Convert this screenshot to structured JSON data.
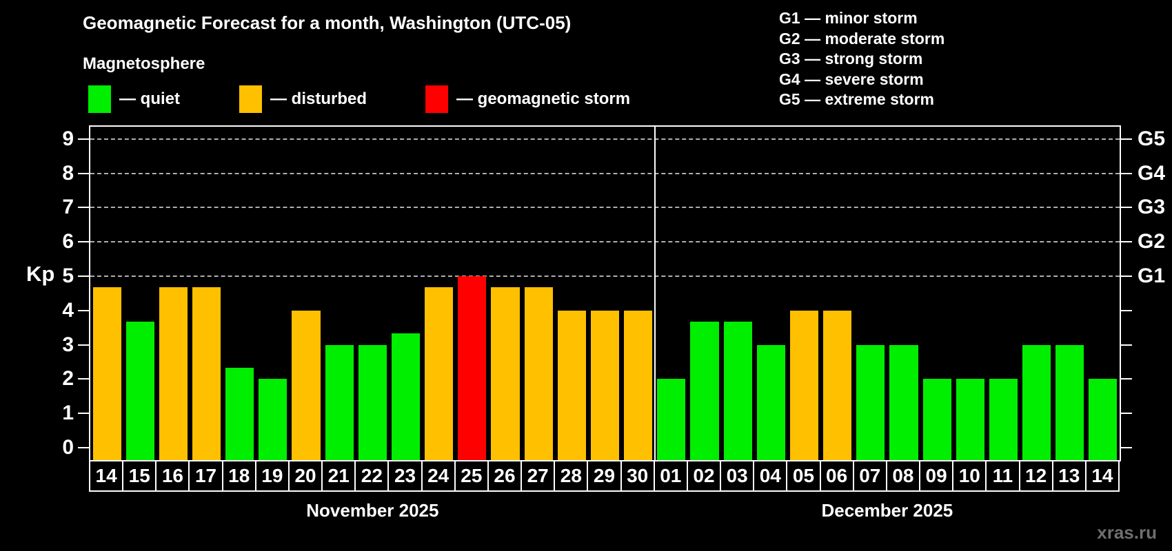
{
  "header": {
    "title": "Geomagnetic Forecast for a month, Washington (UTC-05)",
    "subtitle": "Magnetosphere",
    "legend": [
      {
        "key": "quiet",
        "label": "— quiet",
        "color": "#00ee00"
      },
      {
        "key": "disturbed",
        "label": "— disturbed",
        "color": "#ffc000"
      },
      {
        "key": "storm",
        "label": "— geomagnetic storm",
        "color": "#ff0000"
      }
    ],
    "storm_scale": [
      "G1 — minor storm",
      "G2 — moderate storm",
      "G3 — strong storm",
      "G4 — severe storm",
      "G5 — extreme storm"
    ]
  },
  "chart_data": {
    "type": "bar",
    "ylabel": "Kp",
    "ylim": [
      0,
      9
    ],
    "yticks": [
      0,
      1,
      2,
      3,
      4,
      5,
      6,
      7,
      8,
      9
    ],
    "gridlines_at": [
      5,
      6,
      7,
      8,
      9
    ],
    "grid": "dashed horizontal at Kp 5-9 only",
    "right_axis_labels": [
      {
        "kp": 5,
        "label": "G1"
      },
      {
        "kp": 6,
        "label": "G2"
      },
      {
        "kp": 7,
        "label": "G3"
      },
      {
        "kp": 8,
        "label": "G4"
      },
      {
        "kp": 9,
        "label": "G5"
      }
    ],
    "colors": {
      "quiet": "#00ee00",
      "disturbed": "#ffc000",
      "storm": "#ff0000"
    },
    "months": [
      {
        "label": "November 2025",
        "days": [
          {
            "day": "14",
            "kp": 4.67,
            "status": "disturbed"
          },
          {
            "day": "15",
            "kp": 3.67,
            "status": "quiet"
          },
          {
            "day": "16",
            "kp": 4.67,
            "status": "disturbed"
          },
          {
            "day": "17",
            "kp": 4.67,
            "status": "disturbed"
          },
          {
            "day": "18",
            "kp": 2.33,
            "status": "quiet"
          },
          {
            "day": "19",
            "kp": 2.0,
            "status": "quiet"
          },
          {
            "day": "20",
            "kp": 4.0,
            "status": "disturbed"
          },
          {
            "day": "21",
            "kp": 3.0,
            "status": "quiet"
          },
          {
            "day": "22",
            "kp": 3.0,
            "status": "quiet"
          },
          {
            "day": "23",
            "kp": 3.33,
            "status": "quiet"
          },
          {
            "day": "24",
            "kp": 4.67,
            "status": "disturbed"
          },
          {
            "day": "25",
            "kp": 5.0,
            "status": "storm"
          },
          {
            "day": "26",
            "kp": 4.67,
            "status": "disturbed"
          },
          {
            "day": "27",
            "kp": 4.67,
            "status": "disturbed"
          },
          {
            "day": "28",
            "kp": 4.0,
            "status": "disturbed"
          },
          {
            "day": "29",
            "kp": 4.0,
            "status": "disturbed"
          },
          {
            "day": "30",
            "kp": 4.0,
            "status": "disturbed"
          }
        ]
      },
      {
        "label": "December 2025",
        "days": [
          {
            "day": "01",
            "kp": 2.0,
            "status": "quiet"
          },
          {
            "day": "02",
            "kp": 3.67,
            "status": "quiet"
          },
          {
            "day": "03",
            "kp": 3.67,
            "status": "quiet"
          },
          {
            "day": "04",
            "kp": 3.0,
            "status": "quiet"
          },
          {
            "day": "05",
            "kp": 4.0,
            "status": "disturbed"
          },
          {
            "day": "06",
            "kp": 4.0,
            "status": "disturbed"
          },
          {
            "day": "07",
            "kp": 3.0,
            "status": "quiet"
          },
          {
            "day": "08",
            "kp": 3.0,
            "status": "quiet"
          },
          {
            "day": "09",
            "kp": 2.0,
            "status": "quiet"
          },
          {
            "day": "10",
            "kp": 2.0,
            "status": "quiet"
          },
          {
            "day": "11",
            "kp": 2.0,
            "status": "quiet"
          },
          {
            "day": "12",
            "kp": 3.0,
            "status": "quiet"
          },
          {
            "day": "13",
            "kp": 3.0,
            "status": "quiet"
          },
          {
            "day": "14",
            "kp": 2.0,
            "status": "quiet"
          }
        ]
      }
    ]
  },
  "watermark": "xras.ru"
}
